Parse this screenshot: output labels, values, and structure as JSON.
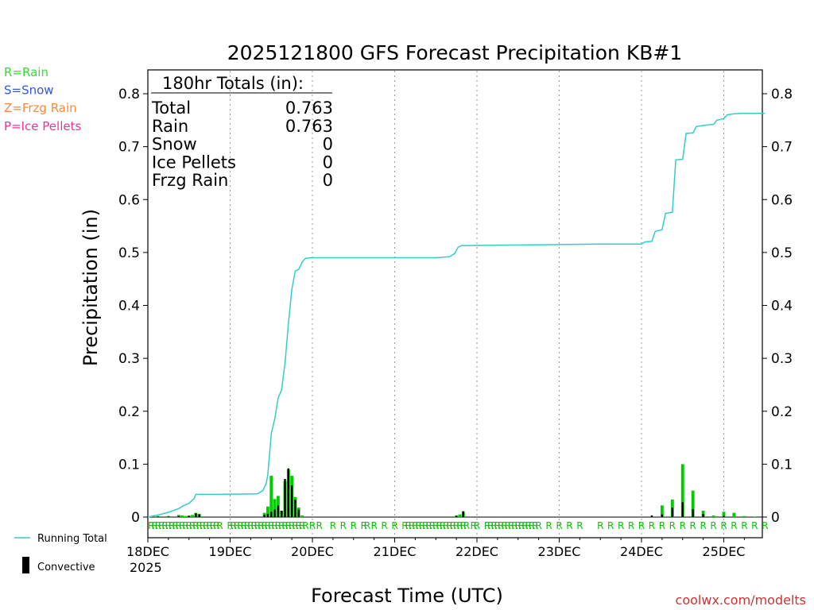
{
  "chart_data": {
    "type": "bar+line",
    "title": "2025121800 GFS Forecast Precipitation KB#1",
    "ylabel": "Precipitation (in)",
    "xlabel": "Forecast Time (UTC)",
    "ylim": [
      0,
      0.85
    ],
    "yticks": [
      0,
      0.1,
      0.2,
      0.3,
      0.4,
      0.5,
      0.6,
      0.7,
      0.8
    ],
    "ytick_labels": [
      "0",
      "0.1",
      "0.2",
      "0.3",
      "0.4",
      "0.5",
      "0.6",
      "0.7",
      "0.8"
    ],
    "xlim_hours": [
      0,
      180
    ],
    "xticks_hours": [
      0,
      24,
      48,
      72,
      96,
      120,
      144,
      168
    ],
    "xtick_labels": [
      "18DEC",
      "19DEC",
      "20DEC",
      "21DEC",
      "22DEC",
      "23DEC",
      "24DEC",
      "25DEC"
    ],
    "year_label": "2025",
    "grid": "vertical-dotted",
    "series": [
      {
        "name": "Running Total",
        "color": "#33cccc",
        "type": "line",
        "points": [
          [
            0,
            0
          ],
          [
            3,
            0.004
          ],
          [
            6,
            0.009
          ],
          [
            9,
            0.016
          ],
          [
            10.5,
            0.022
          ],
          [
            12,
            0.026
          ],
          [
            13.5,
            0.035
          ],
          [
            14,
            0.043
          ],
          [
            21,
            0.043
          ],
          [
            32,
            0.044
          ],
          [
            33.5,
            0.05
          ],
          [
            34.5,
            0.063
          ],
          [
            35,
            0.08
          ],
          [
            36,
            0.158
          ],
          [
            37,
            0.185
          ],
          [
            38,
            0.225
          ],
          [
            39,
            0.24
          ],
          [
            40,
            0.29
          ],
          [
            41,
            0.365
          ],
          [
            42,
            0.43
          ],
          [
            43,
            0.465
          ],
          [
            44,
            0.468
          ],
          [
            45,
            0.482
          ],
          [
            46,
            0.489
          ],
          [
            48,
            0.49
          ],
          [
            60,
            0.49
          ],
          [
            84,
            0.49
          ],
          [
            88,
            0.492
          ],
          [
            89.5,
            0.498
          ],
          [
            90.5,
            0.51
          ],
          [
            91.5,
            0.513
          ],
          [
            108,
            0.514
          ],
          [
            120,
            0.515
          ],
          [
            132,
            0.516
          ],
          [
            144,
            0.516
          ],
          [
            145,
            0.52
          ],
          [
            147,
            0.521
          ],
          [
            148,
            0.54
          ],
          [
            150,
            0.543
          ],
          [
            151,
            0.574
          ],
          [
            153,
            0.576
          ],
          [
            154,
            0.675
          ],
          [
            156,
            0.676
          ],
          [
            157,
            0.725
          ],
          [
            159,
            0.726
          ],
          [
            160,
            0.738
          ],
          [
            162,
            0.74
          ],
          [
            165,
            0.742
          ],
          [
            166,
            0.75
          ],
          [
            168,
            0.753
          ],
          [
            169,
            0.76
          ],
          [
            171,
            0.762
          ],
          [
            173,
            0.763
          ],
          [
            180,
            0.763
          ]
        ]
      },
      {
        "name": "Rain",
        "color": "#00cc00",
        "type": "bar",
        "points": [
          [
            1,
            0.001
          ],
          [
            3,
            0.002
          ],
          [
            6,
            0.002
          ],
          [
            9,
            0.004
          ],
          [
            10,
            0.003
          ],
          [
            11,
            0.002
          ],
          [
            12,
            0.003
          ],
          [
            13,
            0.004
          ],
          [
            14,
            0.008
          ],
          [
            15,
            0.006
          ],
          [
            34,
            0.008
          ],
          [
            35,
            0.02
          ],
          [
            36,
            0.078
          ],
          [
            37,
            0.034
          ],
          [
            38,
            0.04
          ],
          [
            39,
            0.012
          ],
          [
            40,
            0.068
          ],
          [
            41,
            0.09
          ],
          [
            42,
            0.078
          ],
          [
            43,
            0.038
          ],
          [
            44,
            0.018
          ],
          [
            45,
            0.003
          ],
          [
            90,
            0.003
          ],
          [
            91,
            0.005
          ],
          [
            92,
            0.01
          ],
          [
            150,
            0.022
          ],
          [
            153,
            0.033
          ],
          [
            156,
            0.1
          ],
          [
            159,
            0.05
          ],
          [
            162,
            0.012
          ],
          [
            165,
            0.003
          ],
          [
            168,
            0.01
          ],
          [
            171,
            0.008
          ],
          [
            174,
            0.002
          ],
          [
            177,
            0.001
          ]
        ]
      },
      {
        "name": "Convective",
        "color": "#000000",
        "type": "bar",
        "points": [
          [
            3,
            0.001
          ],
          [
            6,
            0.001
          ],
          [
            9,
            0.002
          ],
          [
            12,
            0.002
          ],
          [
            14,
            0.007
          ],
          [
            15,
            0.005
          ],
          [
            34,
            0.004
          ],
          [
            35,
            0.006
          ],
          [
            36,
            0.01
          ],
          [
            37,
            0.015
          ],
          [
            38,
            0.022
          ],
          [
            39,
            0.012
          ],
          [
            40,
            0.072
          ],
          [
            41,
            0.092
          ],
          [
            42,
            0.06
          ],
          [
            43,
            0.033
          ],
          [
            44,
            0.014
          ],
          [
            90,
            0.002
          ],
          [
            92,
            0.011
          ],
          [
            147,
            0.003
          ],
          [
            150,
            0.005
          ],
          [
            153,
            0.018
          ],
          [
            156,
            0.028
          ],
          [
            159,
            0.015
          ],
          [
            162,
            0.006
          ],
          [
            168,
            0.002
          ]
        ]
      }
    ],
    "ptype_row": {
      "hours": [
        1,
        2,
        3,
        4,
        5,
        6,
        7,
        8,
        9,
        10,
        11,
        12,
        13,
        14,
        15,
        16,
        17,
        18,
        19,
        20,
        21,
        24,
        25,
        26,
        27,
        28,
        29,
        30,
        31,
        32,
        33,
        34,
        35,
        36,
        37,
        38,
        39,
        40,
        41,
        42,
        43,
        44,
        45,
        46,
        48,
        50,
        54,
        57,
        60,
        63,
        64,
        66,
        69,
        72,
        75,
        76,
        77,
        78,
        79,
        80,
        81,
        82,
        83,
        84,
        85,
        86,
        87,
        88,
        89,
        90,
        91,
        92,
        93,
        95,
        96,
        99,
        100,
        101,
        102,
        103,
        104,
        105,
        106,
        107,
        108,
        109,
        110,
        111,
        112,
        113,
        114,
        117,
        120,
        123,
        126,
        132,
        135,
        138,
        141,
        144,
        147,
        150,
        153,
        156,
        159,
        162,
        165,
        168,
        171,
        174,
        177,
        180
      ],
      "letter": "R",
      "color": "#00cc00"
    },
    "totals_box": {
      "header": "180hr Totals (in):",
      "rows": [
        {
          "label": "Total",
          "value": "0.763"
        },
        {
          "label": "Rain",
          "value": "0.763"
        },
        {
          "label": "Snow",
          "value": "0"
        },
        {
          "label": "Ice Pellets",
          "value": "0"
        },
        {
          "label": "Frzg Rain",
          "value": "0"
        }
      ]
    },
    "ptype_legend": [
      {
        "text": "R=Rain",
        "color": "#33dd33"
      },
      {
        "text": "S=Snow",
        "color": "#3355ee"
      },
      {
        "text": "Z=Frzg Rain",
        "color": "#ff8833"
      },
      {
        "text": "P=Ice Pellets",
        "color": "#ee3399"
      }
    ],
    "bottom_legend": {
      "line_label": "Running Total",
      "bar_label": "Convective"
    },
    "credit": "coolwx.com/modelts",
    "credit_color": "#cc3333"
  }
}
